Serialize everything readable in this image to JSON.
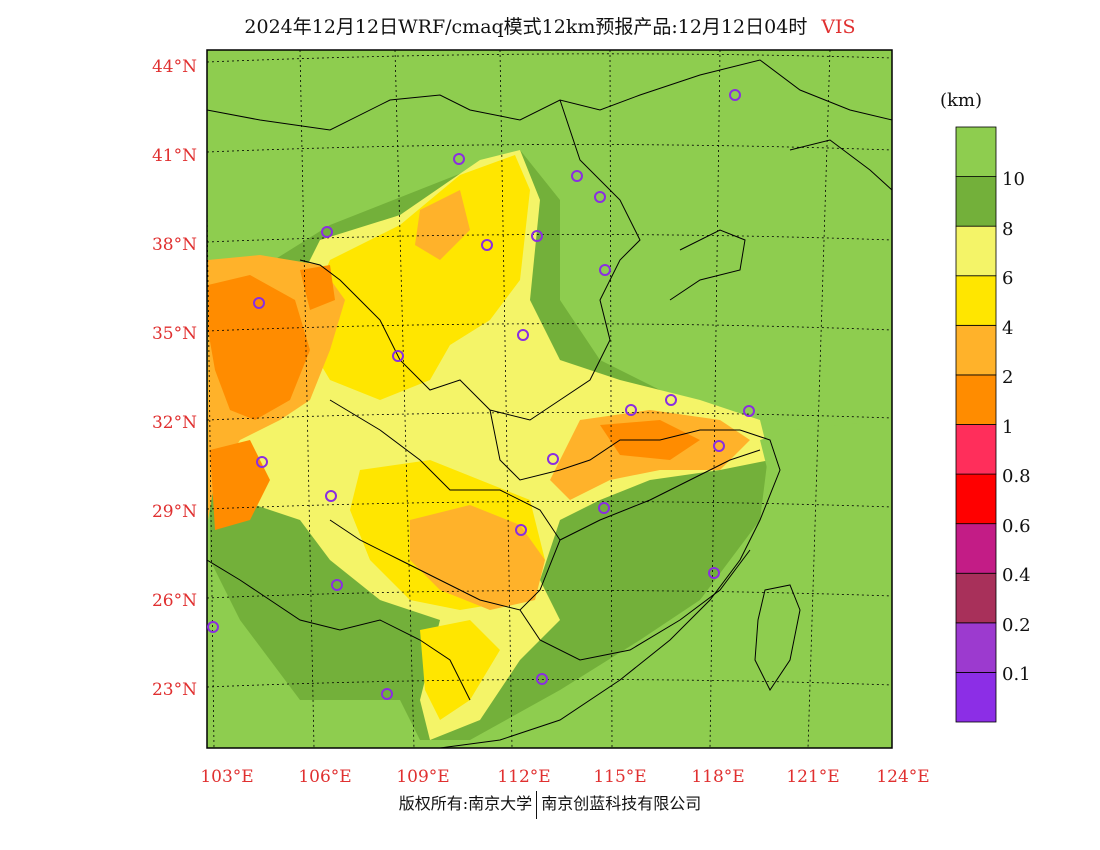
{
  "title": {
    "main": "2024年12月12日WRF/cmaq模式12km预报产品:12月12日04时",
    "variable": "VIS"
  },
  "legend": {
    "unit": "(km)",
    "colors": [
      "#8c2ee6",
      "#9c3acf",
      "#a8305a",
      "#c31c86",
      "#ff0000",
      "#ff2e5b",
      "#ff8c00",
      "#ffb22a",
      "#ffe600",
      "#f4f468",
      "#73b03a",
      "#8ecd4f"
    ],
    "labels": [
      "0.1",
      "0.2",
      "0.4",
      "0.6",
      "0.8",
      "1",
      "2",
      "4",
      "6",
      "8",
      "10"
    ]
  },
  "axes": {
    "lat_labels": [
      "44°N",
      "41°N",
      "38°N",
      "35°N",
      "32°N",
      "29°N",
      "26°N",
      "23°N"
    ],
    "lon_labels": [
      "103°E",
      "106°E",
      "109°E",
      "112°E",
      "115°E",
      "118°E",
      "121°E",
      "124°E"
    ],
    "label_color": "#e03030"
  },
  "stations_color": "#8a2ee0",
  "credit": {
    "left": "版权所有:南京大学",
    "right": "南京创蓝科技有限公司"
  }
}
